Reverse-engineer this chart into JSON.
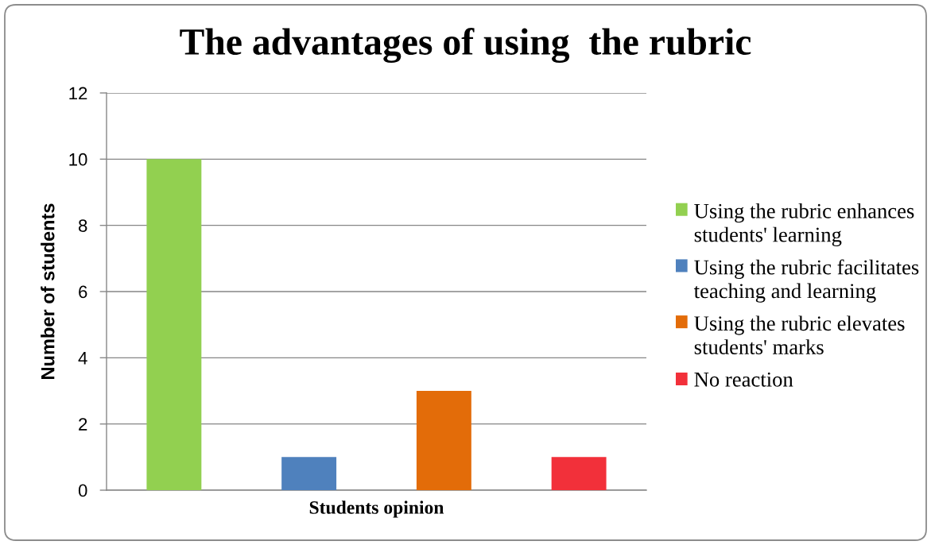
{
  "chart_data": {
    "type": "bar",
    "title": "The advantages of using  the rubric",
    "xlabel": "Students opinion",
    "ylabel": "Number of students",
    "categories": [
      null
    ],
    "series": [
      {
        "name": "Using the rubric enhances students' learning",
        "color": "#92d050",
        "values": [
          10
        ]
      },
      {
        "name": "Using the rubric facilitates teaching and learning",
        "color": "#4f81bd",
        "values": [
          1
        ]
      },
      {
        "name": "Using the rubric elevates students' marks",
        "color": "#e36c09",
        "values": [
          3
        ]
      },
      {
        "name": "No reaction",
        "color": "#f2303a",
        "values": [
          1
        ]
      }
    ],
    "ylim": [
      0,
      12
    ],
    "yticks": [
      0,
      2,
      4,
      6,
      8,
      10,
      12
    ],
    "grid": "y",
    "legend": "right"
  }
}
